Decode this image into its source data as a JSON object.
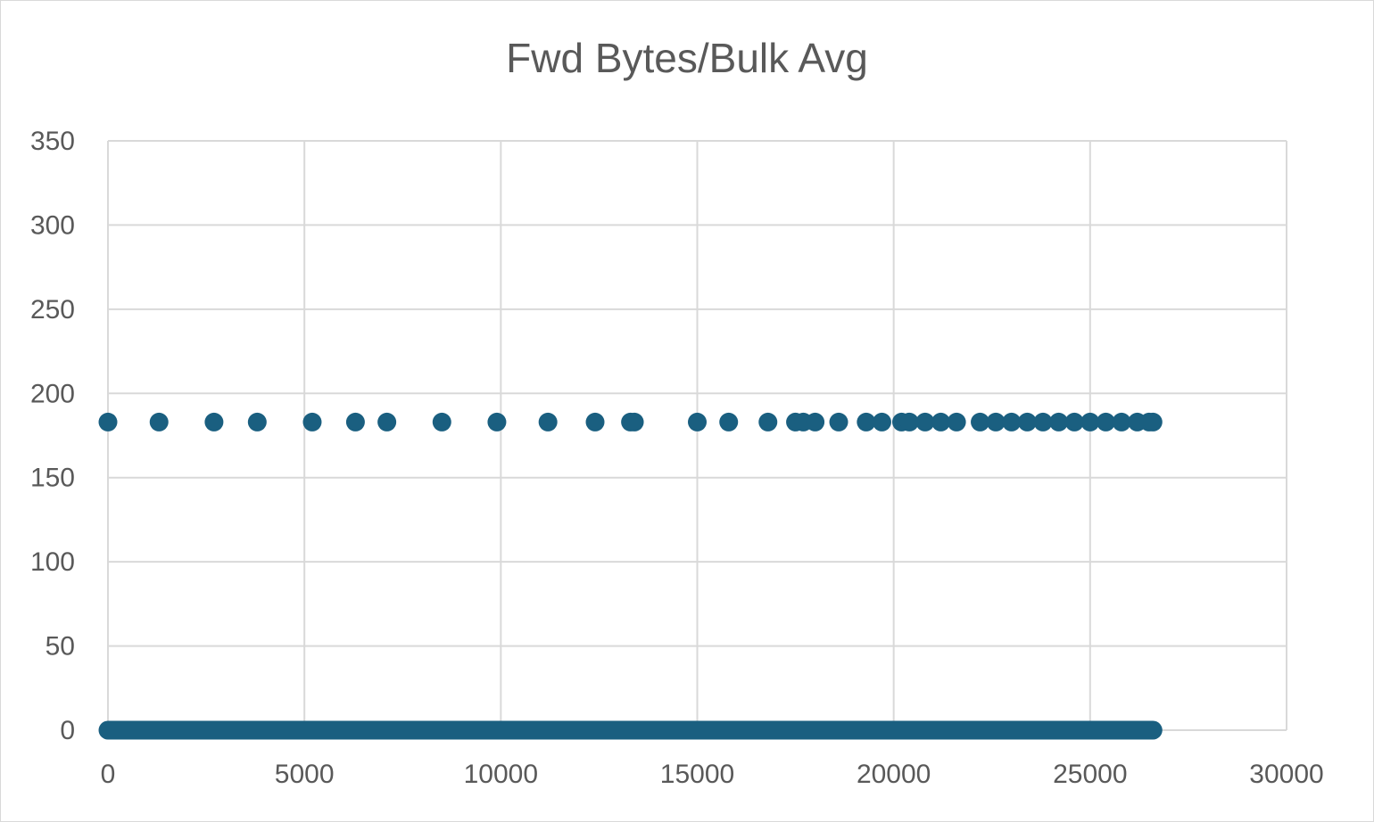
{
  "chart_data": {
    "type": "scatter",
    "title": "Fwd Bytes/Bulk Avg",
    "xlabel": "",
    "ylabel": "",
    "xlim": [
      0,
      30000
    ],
    "ylim": [
      0,
      350
    ],
    "x_ticks": [
      0,
      5000,
      10000,
      15000,
      20000,
      25000,
      30000
    ],
    "y_ticks": [
      0,
      50,
      100,
      150,
      200,
      250,
      300,
      350
    ],
    "grid": true,
    "legend": "none",
    "marker_color": "#1a5f80",
    "series": [
      {
        "points": [
          [
            0,
            183
          ],
          [
            1300,
            183
          ],
          [
            2700,
            183
          ],
          [
            3800,
            183
          ],
          [
            5200,
            183
          ],
          [
            6300,
            183
          ],
          [
            7100,
            183
          ],
          [
            8500,
            183
          ],
          [
            9900,
            183
          ],
          [
            11200,
            183
          ],
          [
            12400,
            183
          ],
          [
            13300,
            183
          ],
          [
            13400,
            183
          ],
          [
            15000,
            183
          ],
          [
            15800,
            183
          ],
          [
            16800,
            183
          ],
          [
            17500,
            183
          ],
          [
            17700,
            183
          ],
          [
            18000,
            183
          ],
          [
            18600,
            183
          ],
          [
            19300,
            183
          ],
          [
            19700,
            183
          ],
          [
            20200,
            183
          ],
          [
            20400,
            183
          ],
          [
            20800,
            183
          ],
          [
            21200,
            183
          ],
          [
            21600,
            183
          ],
          [
            22200,
            183
          ],
          [
            22600,
            183
          ],
          [
            23000,
            183
          ],
          [
            23400,
            183
          ],
          [
            23800,
            183
          ],
          [
            24200,
            183
          ],
          [
            24600,
            183
          ],
          [
            25000,
            183
          ],
          [
            25400,
            183
          ],
          [
            25800,
            183
          ],
          [
            26200,
            183
          ],
          [
            26500,
            183
          ],
          [
            26600,
            183
          ]
        ],
        "zero_run": {
          "x_start": 0,
          "x_end": 26600,
          "y": 0
        }
      }
    ]
  }
}
